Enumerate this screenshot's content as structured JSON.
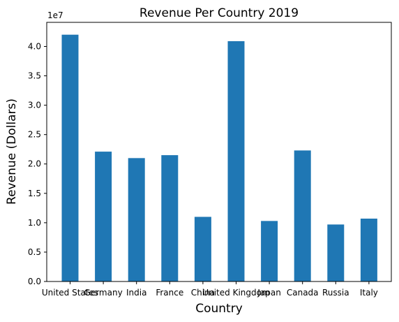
{
  "chart_data": {
    "type": "bar",
    "title": "Revenue Per Country 2019",
    "xlabel": "Country",
    "ylabel": "Revenue (Dollars)",
    "y_offset_text": "1e7",
    "categories": [
      "United States",
      "Germany",
      "India",
      "France",
      "China",
      "United Kingdom",
      "Japan",
      "Canada",
      "Russia",
      "Italy"
    ],
    "values": [
      42000000,
      22100000,
      21000000,
      21500000,
      11000000,
      40900000,
      10300000,
      22300000,
      9700000,
      10700000
    ],
    "y_ticks": [
      0.0,
      0.5,
      1.0,
      1.5,
      2.0,
      2.5,
      3.0,
      3.5,
      4.0
    ],
    "y_tick_labels": [
      "0.0",
      "0.5",
      "1.0",
      "1.5",
      "2.0",
      "2.5",
      "3.0",
      "3.5",
      "4.0"
    ],
    "ylim": [
      0,
      44100000
    ],
    "bar_color": "#1f77b4",
    "grid": false,
    "legend": "none"
  }
}
